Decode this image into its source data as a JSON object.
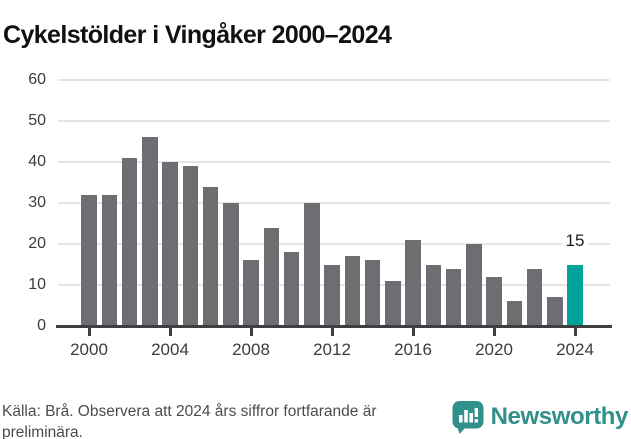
{
  "title": "Cykelstölder i Vingåker 2000–2024",
  "chart_data": {
    "type": "bar",
    "title": "Cykelstölder i Vingåker 2000–2024",
    "categories": [
      "2000",
      "2001",
      "2002",
      "2003",
      "2004",
      "2005",
      "2006",
      "2007",
      "2008",
      "2009",
      "2010",
      "2011",
      "2012",
      "2013",
      "2014",
      "2015",
      "2016",
      "2017",
      "2018",
      "2019",
      "2020",
      "2021",
      "2022",
      "2023",
      "2024"
    ],
    "values": [
      32,
      32,
      41,
      46,
      40,
      39,
      34,
      30,
      16,
      24,
      18,
      30,
      15,
      17,
      16,
      11,
      21,
      15,
      14,
      20,
      12,
      6,
      14,
      7,
      15
    ],
    "xlabel": "",
    "ylabel": "",
    "ylim": [
      0,
      60
    ],
    "yticks": [
      0,
      10,
      20,
      30,
      40,
      50,
      60
    ],
    "xtick_years": [
      "2000",
      "2004",
      "2008",
      "2012",
      "2016",
      "2020",
      "2024"
    ],
    "grid": true,
    "legend": "none",
    "bar_color": "#6f6c72",
    "highlight_color": "#00a39a",
    "highlight_index": 24,
    "highlight_label": "15"
  },
  "footer": {
    "source_line1": "Källa: Brå. Observera att 2024 års siffror fortfarande är",
    "source_line2": "preliminära."
  },
  "branding": {
    "logo_text": "Newsworthy",
    "logo_color": "#32908a"
  }
}
